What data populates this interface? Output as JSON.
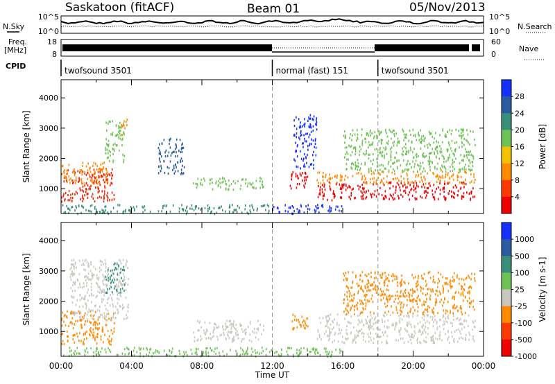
{
  "header": {
    "station": "Saskatoon (fitACF)",
    "beam": "Beam 01",
    "date": "05/Nov/2013"
  },
  "side_labels": {
    "nsky": "N.Sky",
    "freq_line1": "Freq.",
    "freq_line2": "[MHz]",
    "cpid": "CPID",
    "nsearch": "N.Search",
    "nave": "Nave",
    "nsky_ticks": [
      "10^5",
      "10^0"
    ],
    "nsearch_ticks": [
      "10^5",
      "10^0"
    ],
    "freq_ticks": [
      "18",
      "8"
    ],
    "nave_ticks": [
      "60",
      "0"
    ]
  },
  "cpid_segments": [
    {
      "label": "twofsound 3501",
      "start_hour": 0
    },
    {
      "label": "normal (fast) 151",
      "start_hour": 12
    },
    {
      "label": "twofsound 3501",
      "start_hour": 18
    }
  ],
  "chart_data": [
    {
      "type": "heatmap",
      "name": "power-panel",
      "ylabel": "Slant Range [km]",
      "xlim_hours": [
        0,
        24
      ],
      "ylim": [
        180,
        4600
      ],
      "y_ticks": [
        "1000",
        "2000",
        "3000",
        "4000"
      ],
      "colorbar": {
        "label": "Power [dB]",
        "tick_labels": [
          "4",
          "8",
          "12",
          "16",
          "20",
          "24",
          "28"
        ],
        "colors": [
          "#1430ff",
          "#2c5aa0",
          "#3a8f7a",
          "#6fc255",
          "#f2c200",
          "#ff8a00",
          "#ff3a00",
          "#ee0000"
        ]
      },
      "echo_regions": [
        {
          "t": [
            0.0,
            3.0
          ],
          "r": [
            600,
            1700
          ],
          "c": "#ee2200"
        },
        {
          "t": [
            0.0,
            2.6
          ],
          "r": [
            1200,
            1900
          ],
          "c": "#ff8a00"
        },
        {
          "t": [
            2.5,
            3.6
          ],
          "r": [
            1900,
            3300
          ],
          "c": "#6fc255"
        },
        {
          "t": [
            3.4,
            3.8
          ],
          "r": [
            2800,
            3400
          ],
          "c": "#ff8a00"
        },
        {
          "t": [
            5.5,
            7.0
          ],
          "r": [
            1500,
            2700
          ],
          "c": "#2c5aa0"
        },
        {
          "t": [
            7.5,
            11.5
          ],
          "r": [
            1000,
            1400
          ],
          "c": "#6fc255"
        },
        {
          "t": [
            0.0,
            12.0
          ],
          "r": [
            200,
            500
          ],
          "c": "#3a8f7a"
        },
        {
          "t": [
            12.0,
            16.0
          ],
          "r": [
            200,
            500
          ],
          "c": "#1430ff"
        },
        {
          "t": [
            12.9,
            14.0
          ],
          "r": [
            1000,
            1600
          ],
          "c": "#ee0000"
        },
        {
          "t": [
            13.2,
            14.5
          ],
          "r": [
            1700,
            3500
          ],
          "c": "#1430ff"
        },
        {
          "t": [
            14.5,
            23.5
          ],
          "r": [
            650,
            1250
          ],
          "c": "#ee0000"
        },
        {
          "t": [
            14.5,
            23.5
          ],
          "r": [
            1200,
            1600
          ],
          "c": "#ff8a00"
        },
        {
          "t": [
            16.0,
            23.5
          ],
          "r": [
            1600,
            3000
          ],
          "c": "#6fc255"
        }
      ]
    },
    {
      "type": "heatmap",
      "name": "velocity-panel",
      "ylabel": "Slant Range [km]",
      "xlabel": "Time UT",
      "xlim_hours": [
        0,
        24
      ],
      "ylim": [
        180,
        4600
      ],
      "y_ticks": [
        "1000",
        "2000",
        "3000",
        "4000"
      ],
      "x_ticks": [
        "00:00",
        "04:00",
        "08:00",
        "12:00",
        "16:00",
        "20:00",
        "00:00"
      ],
      "colorbar": {
        "label": "Velocity [m s-1]",
        "tick_labels": [
          "1000",
          "500",
          "100",
          "25",
          "-25",
          "-100",
          "-500",
          "-1000"
        ],
        "colors": [
          "#1430ff",
          "#2c5aa0",
          "#3a8f7a",
          "#6fc255",
          "#c8c8c0",
          "#ff8a00",
          "#ff3a00",
          "#ee0000"
        ]
      },
      "echo_regions": [
        {
          "t": [
            0.0,
            3.0
          ],
          "r": [
            600,
            1700
          ],
          "c": "#ff8a00"
        },
        {
          "t": [
            0.5,
            3.8
          ],
          "r": [
            1400,
            3400
          ],
          "c": "#c8c8c0"
        },
        {
          "t": [
            2.5,
            3.6
          ],
          "r": [
            2300,
            3300
          ],
          "c": "#3a8f7a"
        },
        {
          "t": [
            7.5,
            11.5
          ],
          "r": [
            700,
            1400
          ],
          "c": "#c8c8c0"
        },
        {
          "t": [
            0.0,
            16.0
          ],
          "r": [
            200,
            500
          ],
          "c": "#6fc255"
        },
        {
          "t": [
            13.0,
            14.0
          ],
          "r": [
            1000,
            1600
          ],
          "c": "#ff8a00"
        },
        {
          "t": [
            14.5,
            23.5
          ],
          "r": [
            650,
            1600
          ],
          "c": "#c8c8c0"
        },
        {
          "t": [
            16.0,
            23.5
          ],
          "r": [
            1600,
            3000
          ],
          "c": "#ff8a00"
        }
      ]
    }
  ]
}
